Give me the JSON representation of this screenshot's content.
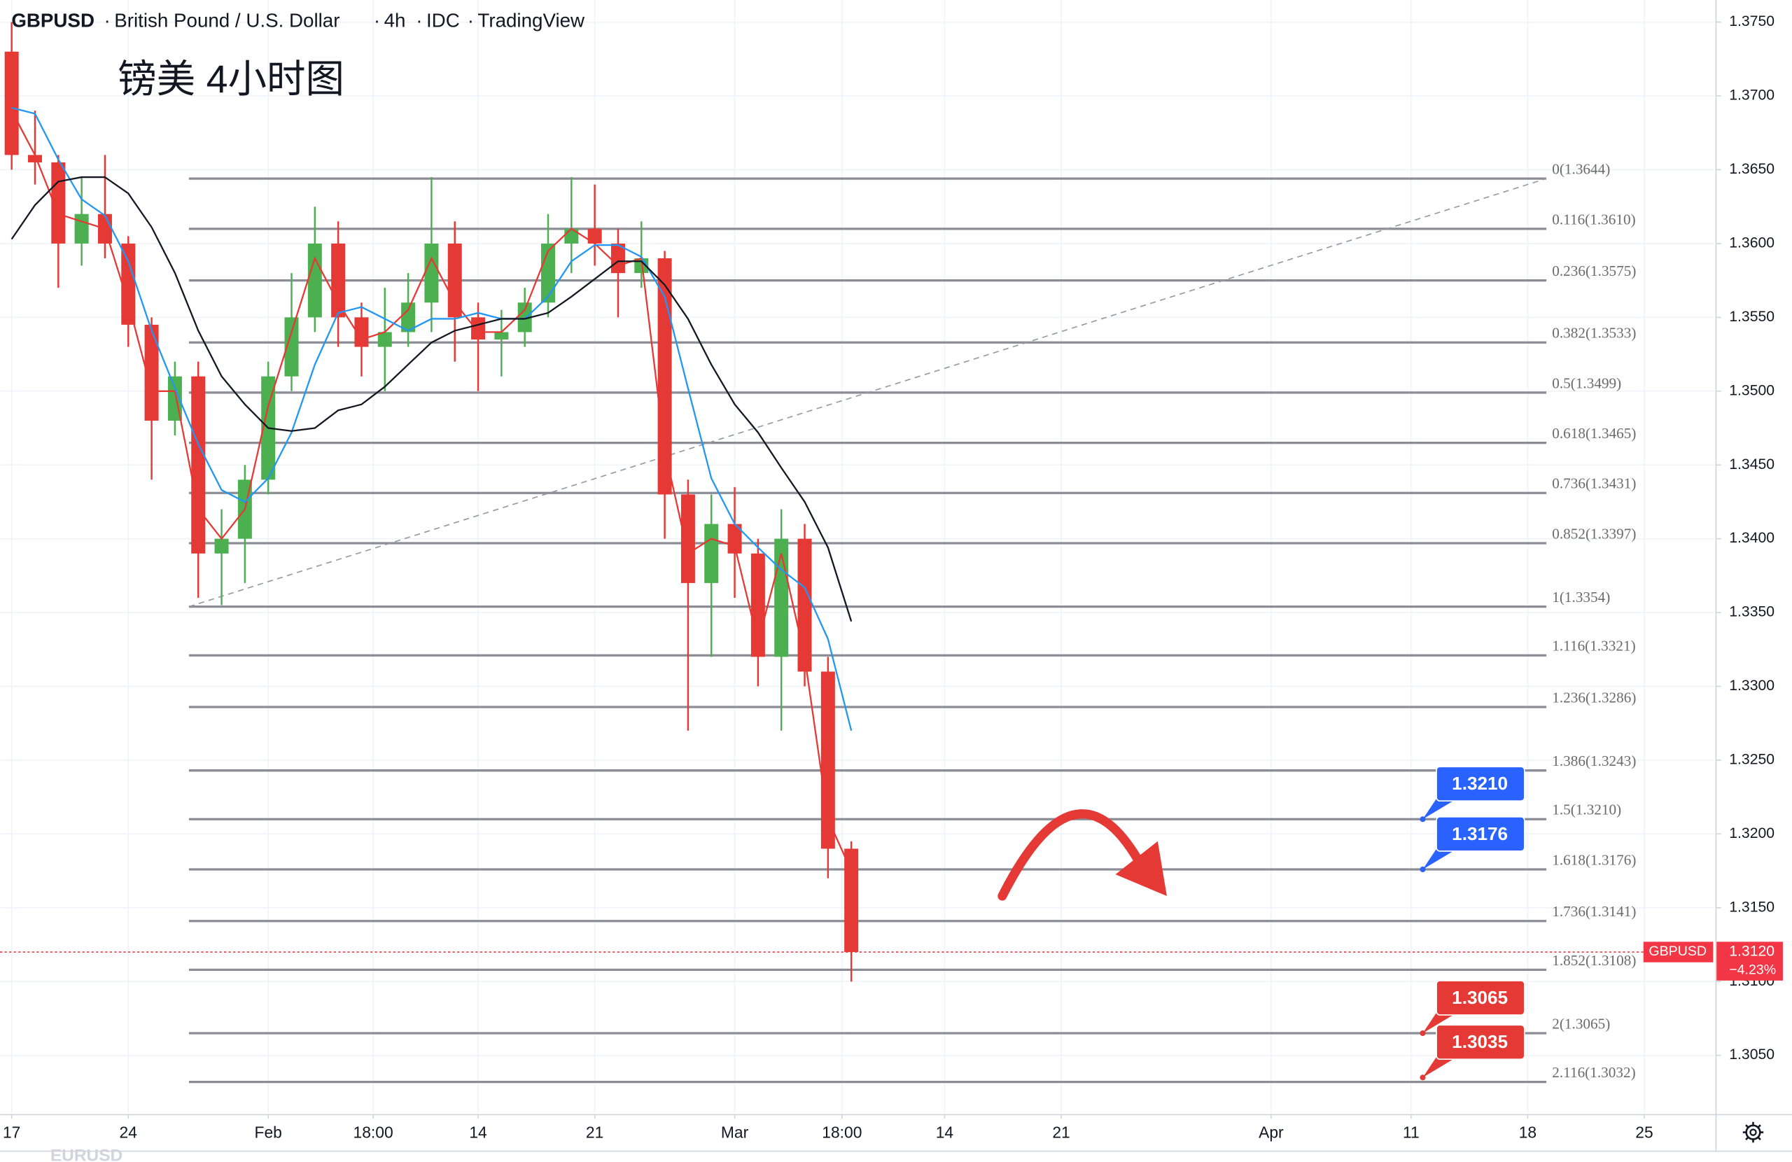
{
  "chart_data": {
    "type": "candlestick",
    "symbol": "GBPUSD",
    "description": "British Pound / U.S. Dollar",
    "interval": "4h",
    "exchange": "IDC",
    "brand": "TradingView",
    "annotation": "镑美 4小时图",
    "watermark": "EURUSD",
    "x": [
      0,
      1,
      2,
      3,
      4,
      5,
      6,
      7,
      8,
      9,
      10,
      11,
      12,
      13,
      14,
      15,
      16,
      17,
      18,
      19,
      20,
      21,
      22,
      23,
      24,
      25,
      26,
      27,
      28,
      29,
      30,
      31,
      32,
      33,
      34,
      35,
      36
    ],
    "open": [
      1.373,
      1.366,
      1.3655,
      1.36,
      1.362,
      1.36,
      1.3545,
      1.348,
      1.351,
      1.339,
      1.34,
      1.344,
      1.351,
      1.355,
      1.36,
      1.355,
      1.353,
      1.354,
      1.356,
      1.36,
      1.355,
      1.3535,
      1.354,
      1.356,
      1.36,
      1.361,
      1.36,
      1.358,
      1.359,
      1.343,
      1.337,
      1.341,
      1.339,
      1.332,
      1.34,
      1.331,
      1.319
    ],
    "high": [
      1.375,
      1.369,
      1.366,
      1.3645,
      1.366,
      1.3605,
      1.355,
      1.352,
      1.352,
      1.342,
      1.345,
      1.352,
      1.358,
      1.3625,
      1.3615,
      1.356,
      1.357,
      1.358,
      1.3645,
      1.3615,
      1.356,
      1.3555,
      1.357,
      1.362,
      1.3645,
      1.364,
      1.361,
      1.3615,
      1.3595,
      1.344,
      1.343,
      1.3435,
      1.34,
      1.342,
      1.341,
      1.332,
      1.3195
    ],
    "low": [
      1.365,
      1.364,
      1.357,
      1.3585,
      1.359,
      1.353,
      1.344,
      1.347,
      1.336,
      1.3355,
      1.337,
      1.343,
      1.35,
      1.354,
      1.353,
      1.351,
      1.35,
      1.353,
      1.354,
      1.352,
      1.35,
      1.351,
      1.353,
      1.355,
      1.358,
      1.3585,
      1.355,
      1.357,
      1.34,
      1.327,
      1.332,
      1.336,
      1.33,
      1.327,
      1.33,
      1.317,
      1.31
    ],
    "close": [
      1.366,
      1.3655,
      1.36,
      1.362,
      1.36,
      1.3545,
      1.348,
      1.351,
      1.339,
      1.34,
      1.344,
      1.351,
      1.355,
      1.36,
      1.355,
      1.353,
      1.354,
      1.356,
      1.36,
      1.355,
      1.3535,
      1.354,
      1.356,
      1.36,
      1.361,
      1.36,
      1.358,
      1.359,
      1.343,
      1.337,
      1.341,
      1.339,
      1.332,
      1.34,
      1.331,
      1.319,
      1.312
    ],
    "up_color": "#4caf50",
    "down_color": "#e53935",
    "series": [
      {
        "color": "#e53935",
        "values": [
          1.369,
          1.366,
          1.362,
          1.3615,
          1.361,
          1.356,
          1.35,
          1.35,
          1.342,
          1.34,
          1.342,
          1.349,
          1.354,
          1.359,
          1.356,
          1.3535,
          1.354,
          1.3555,
          1.359,
          1.356,
          1.354,
          1.354,
          1.3555,
          1.3595,
          1.361,
          1.36,
          1.3585,
          1.359,
          1.346,
          1.339,
          1.34,
          1.3395,
          1.333,
          1.339,
          1.332,
          1.321,
          1.3175
        ]
      },
      {
        "color": "#2196f3",
        "values": [
          1.3692,
          1.3688,
          1.3657,
          1.363,
          1.3619,
          1.3588,
          1.3541,
          1.3502,
          1.3464,
          1.3433,
          1.3425,
          1.3441,
          1.3472,
          1.3518,
          1.3553,
          1.3557,
          1.3549,
          1.3541,
          1.3549,
          1.3549,
          1.3553,
          1.3549,
          1.3549,
          1.3564,
          1.3588,
          1.3599,
          1.3599,
          1.3591,
          1.3564,
          1.3502,
          1.3441,
          1.341,
          1.3394,
          1.3379,
          1.3367,
          1.3332,
          1.327
        ]
      },
      {
        "color": "#131722",
        "values": [
          1.3603,
          1.3626,
          1.3642,
          1.3645,
          1.3645,
          1.3634,
          1.3611,
          1.358,
          1.3541,
          1.351,
          1.3491,
          1.3475,
          1.3473,
          1.3475,
          1.3487,
          1.3491,
          1.3503,
          1.3518,
          1.3533,
          1.3541,
          1.3545,
          1.3549,
          1.3549,
          1.3553,
          1.3564,
          1.3576,
          1.3588,
          1.3588,
          1.3572,
          1.3549,
          1.3518,
          1.3491,
          1.3472,
          1.3448,
          1.3425,
          1.3394,
          1.3344
        ]
      }
    ],
    "fib_x": [
      7.6,
      65.8
    ],
    "fib_color": "#8a8d96",
    "fib_levels": [
      {
        "value": 1.3644,
        "label": "0(1.3644)"
      },
      {
        "value": 1.361,
        "label": "0.116(1.3610)"
      },
      {
        "value": 1.3575,
        "label": "0.236(1.3575)"
      },
      {
        "value": 1.3533,
        "label": "0.382(1.3533)"
      },
      {
        "value": 1.3499,
        "label": "0.5(1.3499)"
      },
      {
        "value": 1.3465,
        "label": "0.618(1.3465)"
      },
      {
        "value": 1.3431,
        "label": "0.736(1.3431)"
      },
      {
        "value": 1.3397,
        "label": "0.852(1.3397)"
      },
      {
        "value": 1.3354,
        "label": "1(1.3354)"
      },
      {
        "value": 1.3321,
        "label": "1.116(1.3321)"
      },
      {
        "value": 1.3286,
        "label": "1.236(1.3286)"
      },
      {
        "value": 1.3243,
        "label": "1.386(1.3243)"
      },
      {
        "value": 1.321,
        "label": "1.5(1.3210)"
      },
      {
        "value": 1.3176,
        "label": "1.618(1.3176)"
      },
      {
        "value": 1.3141,
        "label": "1.736(1.3141)"
      },
      {
        "value": 1.3108,
        "label": "1.852(1.3108)"
      },
      {
        "value": 1.3065,
        "label": "2(1.3065)"
      },
      {
        "value": 1.3032,
        "label": "2.116(1.3032)"
      }
    ],
    "trendline": {
      "x": [
        7.6,
        65.8
      ],
      "y": [
        1.3354,
        1.3644
      ],
      "color": "#9598a1"
    },
    "price_tags": [
      {
        "value": 1.321,
        "label": "1.3210",
        "color": "#2962ff"
      },
      {
        "value": 1.3176,
        "label": "1.3176",
        "color": "#2962ff"
      },
      {
        "value": 1.3065,
        "label": "1.3065",
        "color": "#e53935"
      },
      {
        "value": 1.3035,
        "label": "1.3035",
        "color": "#e53935"
      }
    ],
    "price_tag_x": 60.5,
    "last_price": {
      "value": 1.312,
      "label": "1.3120",
      "change": "−4.23%",
      "color": "#f23645"
    },
    "xlim": [
      -0.5,
      73
    ],
    "ylim": [
      1.3011,
      1.3765
    ],
    "xticks": [
      {
        "value": 0,
        "label": "17"
      },
      {
        "value": 5,
        "label": "24"
      },
      {
        "value": 11,
        "label": "Feb"
      },
      {
        "value": 15.5,
        "label": "18:00"
      },
      {
        "value": 20,
        "label": "14"
      },
      {
        "value": 25,
        "label": "21"
      },
      {
        "value": 31,
        "label": "Mar"
      },
      {
        "value": 35.6,
        "label": "18:00"
      },
      {
        "value": 40,
        "label": "14"
      },
      {
        "value": 45,
        "label": "21"
      },
      {
        "value": 54,
        "label": "Apr"
      },
      {
        "value": 60,
        "label": "11"
      },
      {
        "value": 65,
        "label": "18"
      },
      {
        "value": 70,
        "label": "25"
      }
    ],
    "yticks": [
      {
        "value": 1.305,
        "label": "1.3050"
      },
      {
        "value": 1.31,
        "label": "1.3100"
      },
      {
        "value": 1.315,
        "label": "1.3150"
      },
      {
        "value": 1.32,
        "label": "1.3200"
      },
      {
        "value": 1.325,
        "label": "1.3250"
      },
      {
        "value": 1.33,
        "label": "1.3300"
      },
      {
        "value": 1.335,
        "label": "1.3350"
      },
      {
        "value": 1.34,
        "label": "1.3400"
      },
      {
        "value": 1.345,
        "label": "1.3450"
      },
      {
        "value": 1.35,
        "label": "1.3500"
      },
      {
        "value": 1.355,
        "label": "1.3550"
      },
      {
        "value": 1.36,
        "label": "1.3600"
      },
      {
        "value": 1.365,
        "label": "1.3650"
      },
      {
        "value": 1.37,
        "label": "1.3700"
      },
      {
        "value": 1.375,
        "label": "1.3750"
      }
    ],
    "grid": true,
    "grid_color": "#f0f3fa"
  }
}
